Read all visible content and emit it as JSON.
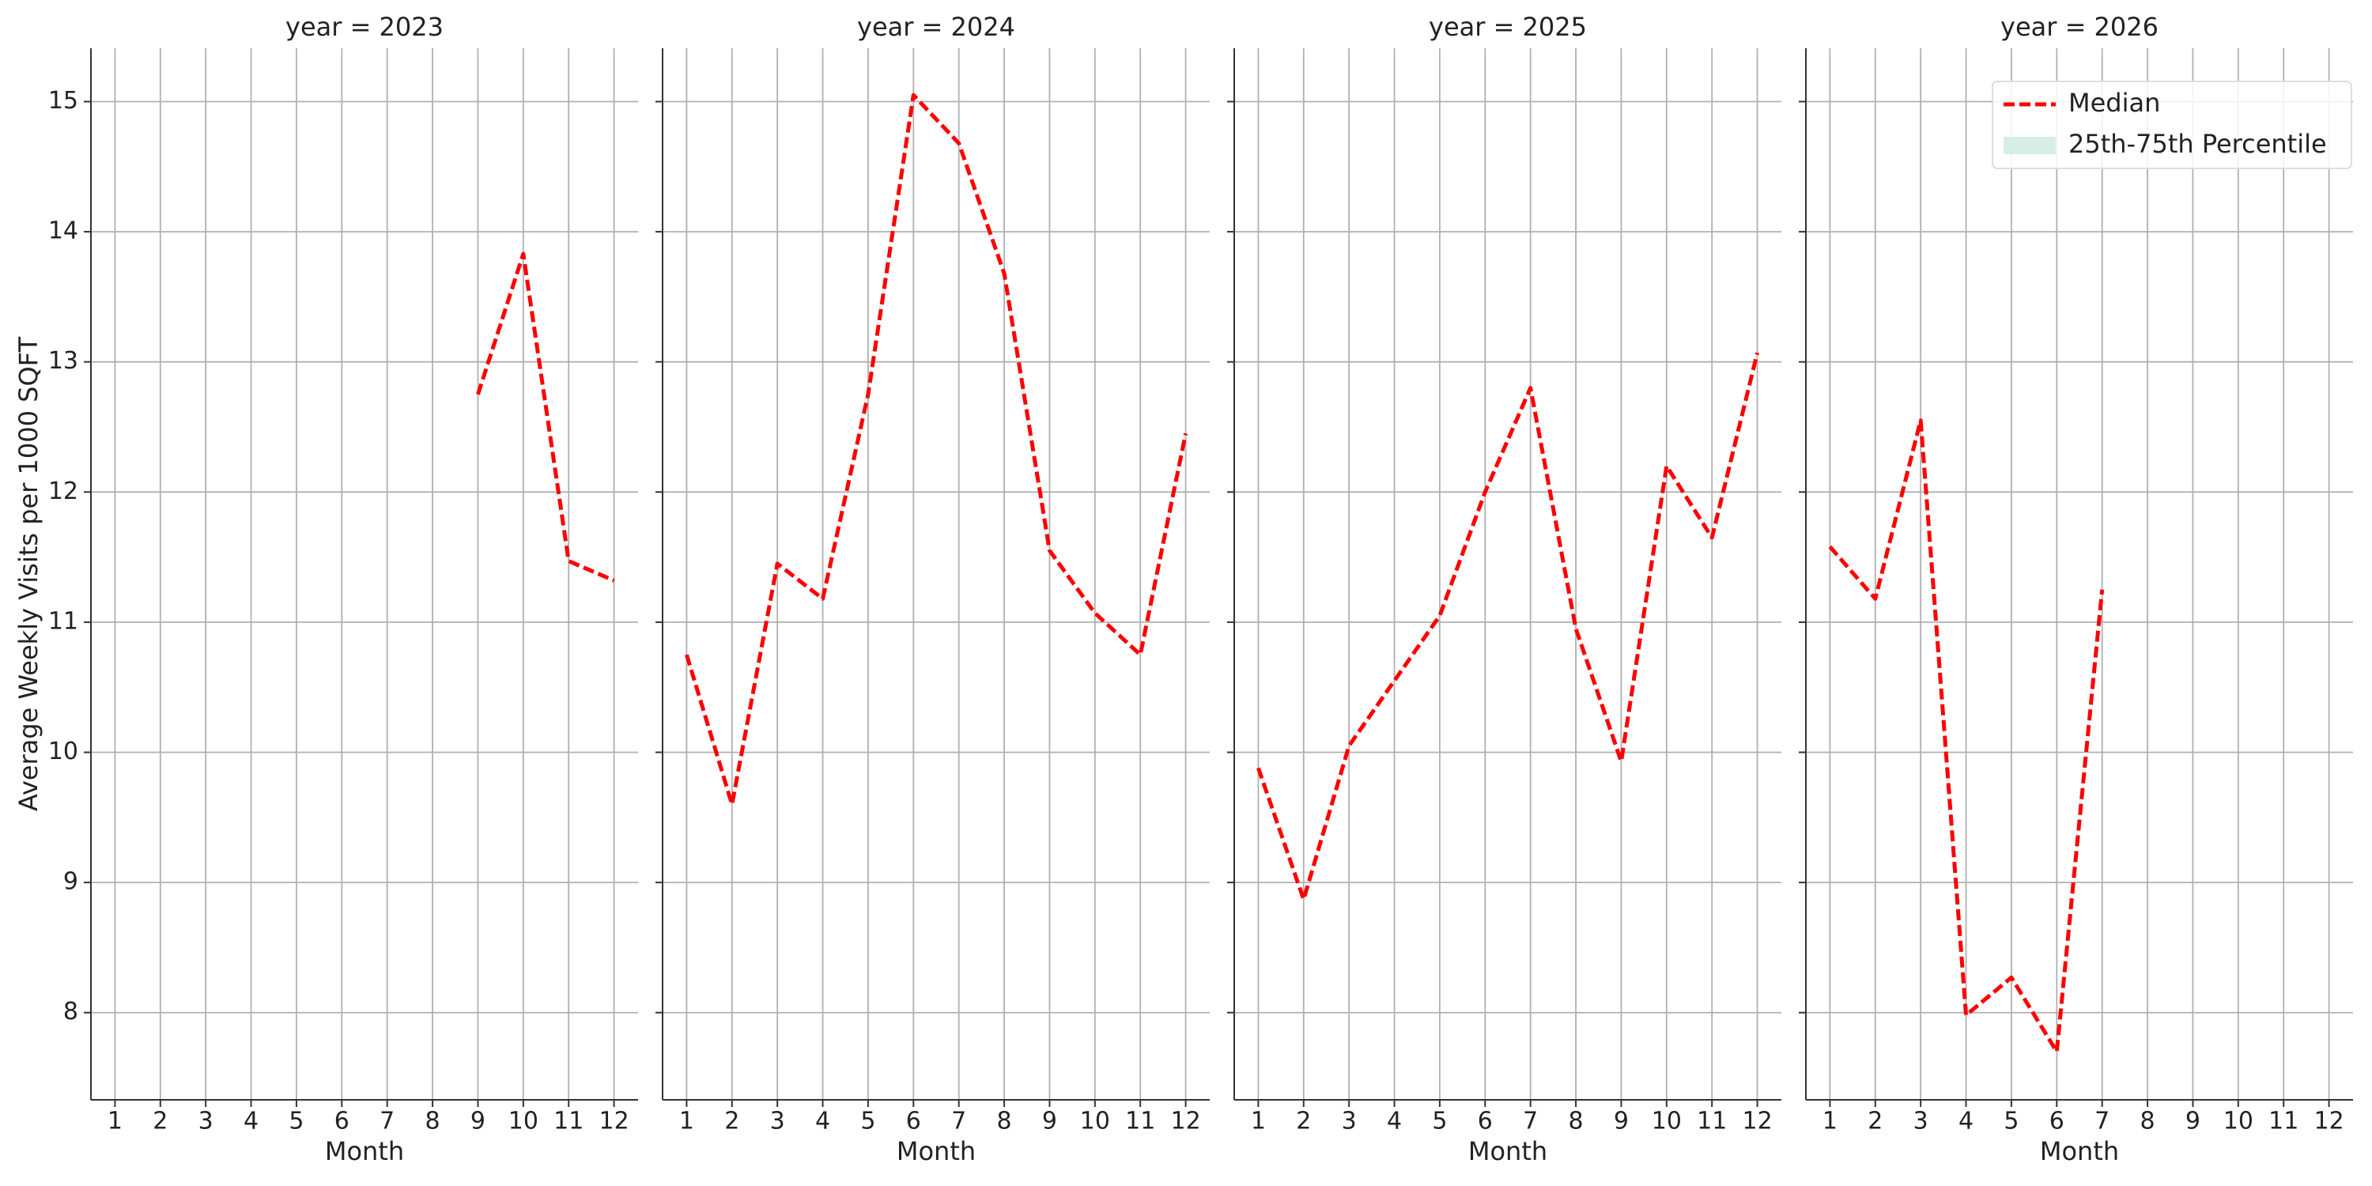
{
  "chart_data": {
    "type": "line",
    "y_label": "Average Weekly Visits per 1000 SQFT",
    "x_label": "Month",
    "x": [
      1,
      2,
      3,
      4,
      5,
      6,
      7,
      8,
      9,
      10,
      11,
      12
    ],
    "xlim": [
      0.47,
      12.53
    ],
    "xticks": [
      1,
      2,
      3,
      4,
      5,
      6,
      7,
      8,
      9,
      10,
      11,
      12
    ],
    "ylim": [
      7.33,
      15.41
    ],
    "yticks": [
      8,
      9,
      10,
      11,
      12,
      13,
      14,
      15
    ],
    "grid": true,
    "line_color": "#ff0000",
    "panels": [
      {
        "title": "year = 2023",
        "values": [
          null,
          null,
          null,
          null,
          null,
          null,
          null,
          null,
          12.75,
          13.83,
          11.47,
          11.32
        ]
      },
      {
        "title": "year = 2024",
        "values": [
          10.75,
          9.6,
          11.45,
          11.18,
          12.75,
          15.05,
          14.68,
          13.68,
          11.55,
          11.07,
          10.75,
          12.45
        ]
      },
      {
        "title": "year = 2025",
        "values": [
          9.88,
          8.87,
          10.05,
          10.55,
          11.05,
          12.0,
          12.8,
          10.95,
          9.93,
          12.2,
          11.65,
          13.07
        ]
      },
      {
        "title": "year = 2026",
        "values": [
          11.58,
          11.18,
          12.55,
          7.98,
          8.27,
          7.7,
          11.25,
          null,
          null,
          null,
          null,
          null
        ]
      }
    ],
    "legend_loc": "upper right",
    "legend": [
      {
        "name": "Median",
        "color": "#ff0000",
        "style": "dashed"
      },
      {
        "name": "25th-75th Percentile",
        "color": "#d7eee6",
        "style": "patch"
      }
    ]
  }
}
